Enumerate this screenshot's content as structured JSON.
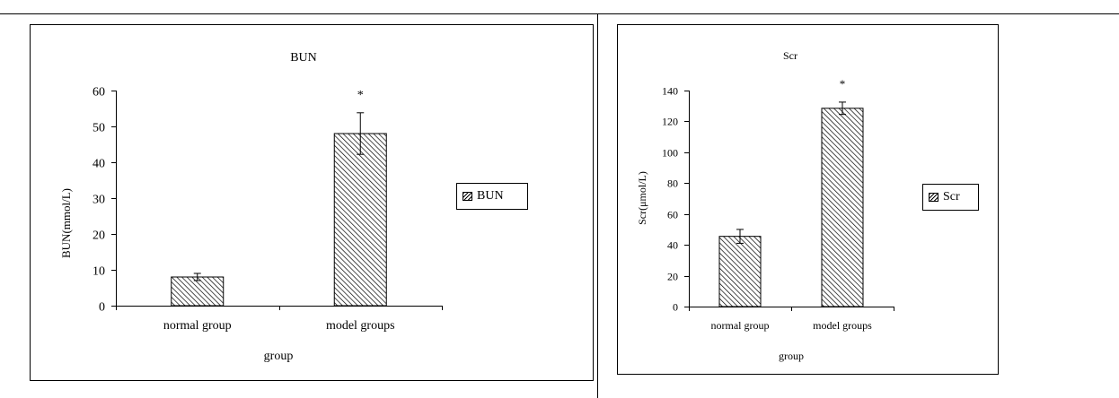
{
  "chart_data": [
    {
      "type": "bar",
      "title": "BUN",
      "xlabel": "group",
      "ylabel": "BUN(mmol/L)",
      "ylim": [
        0,
        60
      ],
      "yticks": [
        0,
        10,
        20,
        30,
        40,
        50,
        60
      ],
      "categories": [
        "normal group",
        "model groups"
      ],
      "series": [
        {
          "name": "BUN",
          "values": [
            8,
            48
          ],
          "errors": [
            1,
            5.8
          ],
          "markers": [
            "",
            "*"
          ]
        }
      ],
      "legend": "right",
      "grid": false,
      "bar_fill": "diagonal-hatch",
      "colors": {
        "bar_stroke": "#000000",
        "hatch": "#000000"
      }
    },
    {
      "type": "bar",
      "title": "Scr",
      "xlabel": "group",
      "ylabel": "Scr(μmol/L)",
      "ylim": [
        0,
        140
      ],
      "yticks": [
        0,
        20,
        40,
        60,
        80,
        100,
        120,
        140
      ],
      "categories": [
        "normal group",
        "model groups"
      ],
      "series": [
        {
          "name": "Scr",
          "values": [
            45.5,
            128.5
          ],
          "errors": [
            4.5,
            4
          ],
          "markers": [
            "",
            "*"
          ]
        }
      ],
      "legend": "right",
      "grid": false,
      "bar_fill": "diagonal-hatch",
      "colors": {
        "bar_stroke": "#000000",
        "hatch": "#000000"
      }
    }
  ]
}
